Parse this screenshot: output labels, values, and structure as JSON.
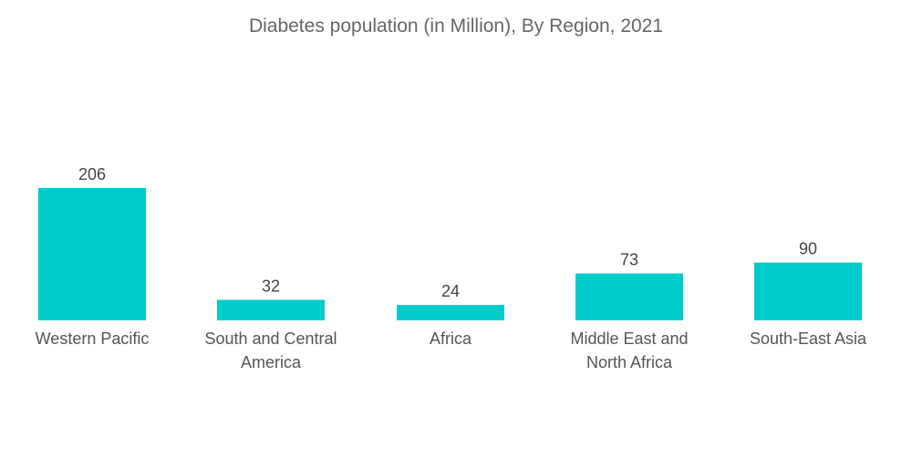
{
  "chart_data": {
    "type": "bar",
    "title": "Diabetes population (in Million), By Region, 2021",
    "categories": [
      "Western Pacific",
      "South and Central America",
      "Africa",
      "Middle East and North Africa",
      "South-East Asia"
    ],
    "category_lines": [
      [
        "Western Pacific"
      ],
      [
        "South and Central",
        "America"
      ],
      [
        "Africa"
      ],
      [
        "Middle East and",
        "North Africa"
      ],
      [
        "South-East Asia"
      ]
    ],
    "values": [
      206,
      32,
      24,
      73,
      90
    ],
    "value_labels": [
      "206",
      "32",
      "24",
      "73",
      "90"
    ],
    "xlabel": "",
    "ylabel": "",
    "ylim": [
      0,
      206
    ],
    "grid": false,
    "legend": "none",
    "bar_color": "#00CCCC"
  }
}
